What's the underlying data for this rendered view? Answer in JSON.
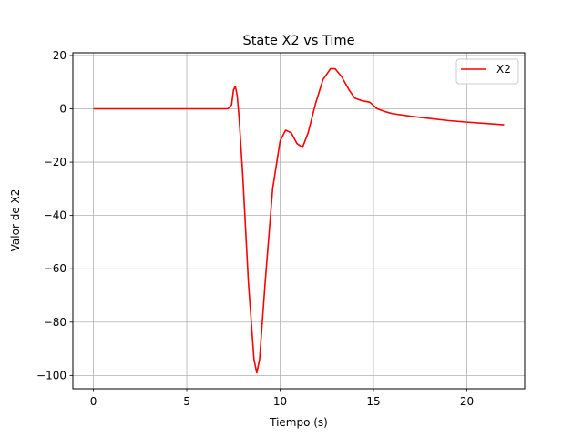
{
  "chart_data": {
    "type": "line",
    "title": "State X2 vs Time",
    "xlabel": "Tiempo (s)",
    "ylabel": "Valor de X2",
    "xlim": [
      -1.1,
      23.1
    ],
    "ylim": [
      -105,
      21
    ],
    "xticks": [
      0,
      5,
      10,
      15,
      20
    ],
    "yticks": [
      -100,
      -80,
      -60,
      -40,
      -20,
      0,
      20
    ],
    "xtick_labels": [
      "0",
      "5",
      "10",
      "15",
      "20"
    ],
    "ytick_labels": [
      "−100",
      "−80",
      "−60",
      "−40",
      "−20",
      "0",
      "20"
    ],
    "grid": true,
    "legend": "top-right",
    "series": [
      {
        "name": "X2",
        "color": "#ff0000",
        "x": [
          0,
          7.2,
          7.4,
          7.5,
          7.6,
          7.7,
          7.8,
          8.0,
          8.3,
          8.6,
          8.75,
          8.9,
          9.2,
          9.6,
          10.0,
          10.3,
          10.6,
          10.9,
          11.2,
          11.5,
          11.9,
          12.3,
          12.7,
          12.95,
          13.3,
          13.7,
          14.0,
          14.4,
          14.8,
          15.2,
          15.6,
          16.0,
          17.0,
          18.0,
          19.0,
          20.0,
          21.0,
          22.0
        ],
        "values": [
          0,
          0,
          1.5,
          7,
          8.5,
          5,
          -3,
          -25,
          -65,
          -94,
          -99,
          -94,
          -65,
          -30,
          -12,
          -8,
          -9,
          -13,
          -14.5,
          -9,
          2,
          11,
          15,
          15,
          12,
          7,
          4,
          3,
          2.5,
          0,
          -1,
          -1.8,
          -2.8,
          -3.6,
          -4.4,
          -5.0,
          -5.5,
          -6
        ]
      }
    ]
  }
}
